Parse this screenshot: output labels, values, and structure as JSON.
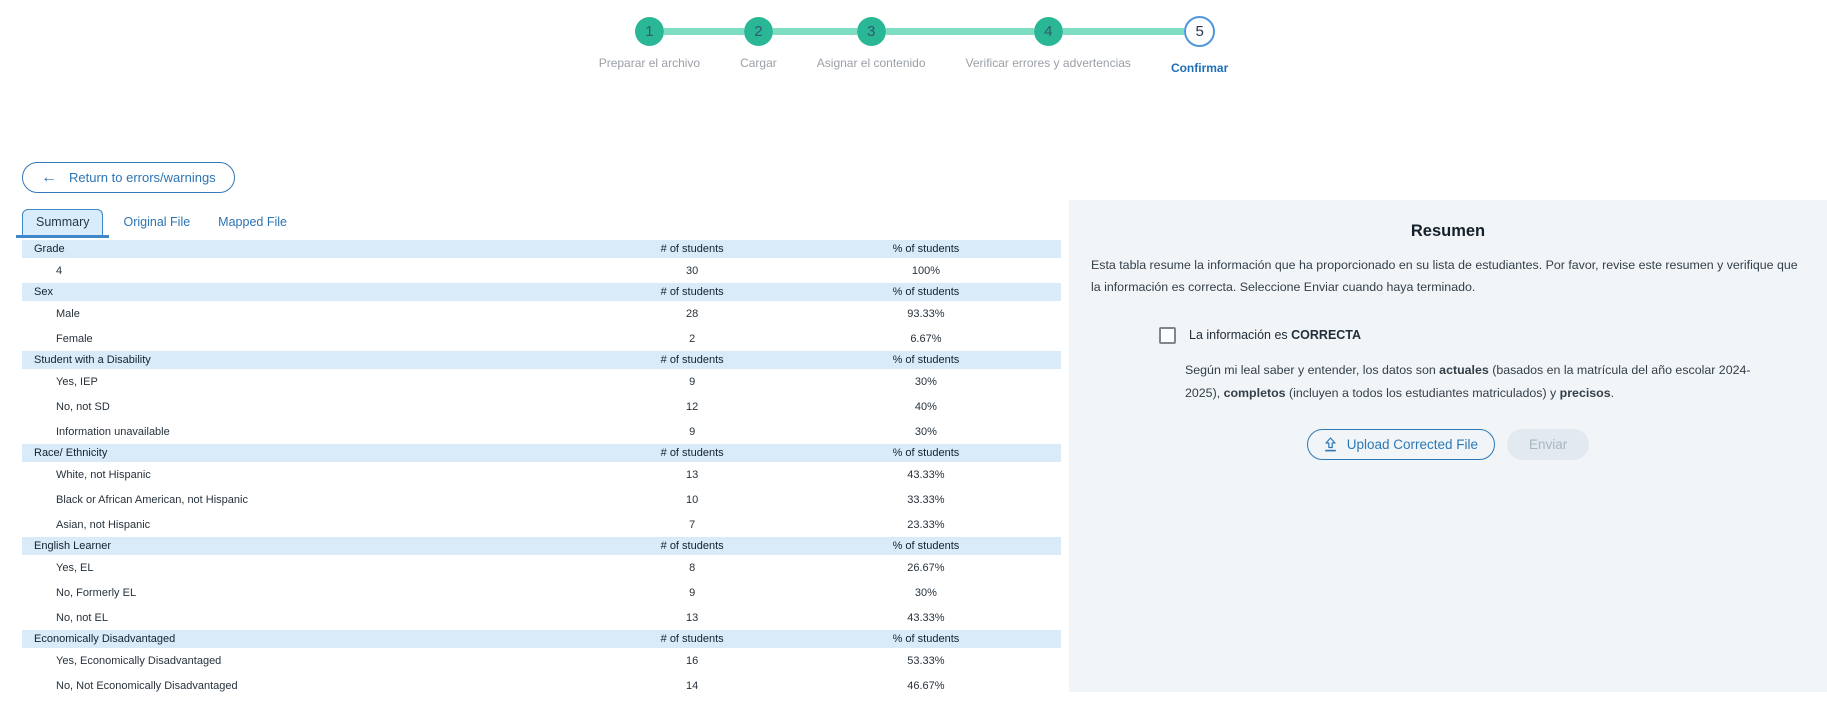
{
  "stepper": {
    "steps": [
      {
        "number": "1",
        "label": "Preparar el archivo",
        "state": "complete"
      },
      {
        "number": "2",
        "label": "Cargar",
        "state": "complete"
      },
      {
        "number": "3",
        "label": "Asignar el contenido",
        "state": "complete"
      },
      {
        "number": "4",
        "label": "Verificar errores y advertencias",
        "state": "complete"
      },
      {
        "number": "5",
        "label": "Confirmar",
        "state": "current"
      }
    ]
  },
  "toolbar": {
    "return_label": "Return to errors/warnings"
  },
  "tabs": [
    {
      "label": "Summary",
      "active": true
    },
    {
      "label": "Original File",
      "active": false
    },
    {
      "label": "Mapped File",
      "active": false
    }
  ],
  "table": {
    "col_headers": [
      "# of students",
      "% of students"
    ],
    "sections": [
      {
        "category": "Grade",
        "rows": [
          {
            "label": "4",
            "count": "30",
            "percent": "100%"
          }
        ]
      },
      {
        "category": "Sex",
        "rows": [
          {
            "label": "Male",
            "count": "28",
            "percent": "93.33%"
          },
          {
            "label": "Female",
            "count": "2",
            "percent": "6.67%"
          }
        ]
      },
      {
        "category": "Student with a Disability",
        "rows": [
          {
            "label": "Yes, IEP",
            "count": "9",
            "percent": "30%"
          },
          {
            "label": "No, not SD",
            "count": "12",
            "percent": "40%"
          },
          {
            "label": "Information unavailable",
            "count": "9",
            "percent": "30%"
          }
        ]
      },
      {
        "category": "Race/ Ethnicity",
        "rows": [
          {
            "label": "White, not Hispanic",
            "count": "13",
            "percent": "43.33%"
          },
          {
            "label": "Black or African American, not Hispanic",
            "count": "10",
            "percent": "33.33%"
          },
          {
            "label": "Asian, not Hispanic",
            "count": "7",
            "percent": "23.33%"
          }
        ]
      },
      {
        "category": "English Learner",
        "rows": [
          {
            "label": "Yes, EL",
            "count": "8",
            "percent": "26.67%"
          },
          {
            "label": "No, Formerly EL",
            "count": "9",
            "percent": "30%"
          },
          {
            "label": "No, not EL",
            "count": "13",
            "percent": "43.33%"
          }
        ]
      },
      {
        "category": "Economically Disadvantaged",
        "rows": [
          {
            "label": "Yes, Economically Disadvantaged",
            "count": "16",
            "percent": "53.33%"
          },
          {
            "label": "No, Not Economically Disadvantaged",
            "count": "14",
            "percent": "46.67%"
          }
        ]
      }
    ]
  },
  "panel": {
    "title": "Resumen",
    "intro": "Esta tabla resume la información que ha proporcionado en su lista de estudiantes. Por favor, revise este resumen y verifique que la información es correcta. Seleccione Enviar cuando haya terminado.",
    "checkbox": {
      "checked": false,
      "prefix": "La información es ",
      "bold": "CORRECTA"
    },
    "certify": {
      "p1": "Según mi leal saber y entender, los datos son ",
      "b1": "actuales",
      "p2": " (basados en la matrícula del año escolar 2024-2025), ",
      "b2": "completos",
      "p3": " (incluyen a todos los estudiantes matriculados) y ",
      "b3": "precisos",
      "p4": "."
    },
    "upload_label": "Upload Corrected File",
    "submit_label": "Enviar"
  },
  "colors": {
    "accent_teal": "#29b795",
    "connector_teal": "#7fdec2",
    "accent_blue": "#2d74b4",
    "current_step_border": "#4f97d9",
    "table_header_bg": "#d9eaf8",
    "panel_bg": "#f1f5f7",
    "disabled_button_bg": "#e2e9f0",
    "disabled_button_text": "#a7b6c2"
  }
}
